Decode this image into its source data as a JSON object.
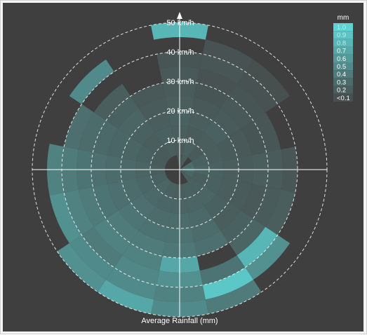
{
  "chart_data": {
    "type": "polar-heatmap",
    "title": "",
    "caption": "Average Rainfall (mm)",
    "radial_axis": {
      "unit": "km/h",
      "ticks": [
        10,
        20,
        30,
        40,
        50
      ],
      "tick_labels": [
        "10 km/h",
        "20 km/h",
        "30 km/h",
        "40 km/h",
        "50 km/h"
      ],
      "range": [
        0,
        50
      ]
    },
    "direction_sectors": 16,
    "speed_bin_width_kmh": 5,
    "legend": {
      "title": "mm",
      "position": "top-right",
      "entries": [
        "1.0",
        "0.9",
        "0.8",
        "0.7",
        "0.6",
        "0.5",
        "0.4",
        "0.3",
        "0.2",
        "<0.1"
      ],
      "levels": [
        1.0,
        0.9,
        0.8,
        0.7,
        0.6,
        0.5,
        0.4,
        0.3,
        0.2,
        0.1
      ]
    },
    "colors": {
      "background": "#3f3f3f",
      "grid": "#ffffff",
      "empty": "#3f3f3f",
      "low": "#474f4f",
      "high": "#5ed3d3"
    },
    "sector_start_deg_from_north_clockwise": -11.25,
    "cells": [
      [
        0.15,
        0.18,
        0.2,
        0.22,
        0.2,
        0.18,
        0.16,
        0.14,
        0.0,
        0.8
      ],
      [
        0.2,
        0.22,
        0.18,
        0.2,
        0.16,
        0.14,
        0.12,
        0.15,
        0.12,
        0.0
      ],
      [
        0.0,
        0.18,
        0.2,
        0.22,
        0.18,
        0.16,
        0.14,
        0.12,
        0.1,
        0.0
      ],
      [
        0.3,
        0.22,
        0.2,
        0.18,
        0.16,
        0.14,
        0.15,
        0.0,
        0.0,
        0.0
      ],
      [
        0.35,
        0.25,
        0.22,
        0.2,
        0.18,
        0.2,
        0.18,
        0.15,
        0.0,
        0.0
      ],
      [
        0.25,
        0.2,
        0.22,
        0.2,
        0.18,
        0.16,
        0.18,
        0.2,
        0.0,
        0.0
      ],
      [
        0.2,
        0.22,
        0.24,
        0.22,
        0.2,
        0.22,
        0.25,
        0.8,
        0.55,
        0.0
      ],
      [
        0.0,
        0.22,
        0.25,
        0.28,
        0.3,
        0.32,
        0.0,
        0.35,
        0.92,
        0.4
      ],
      [
        0.0,
        0.2,
        0.24,
        0.3,
        0.34,
        0.38,
        0.7,
        0.55,
        0.45,
        0.5
      ],
      [
        0.0,
        0.22,
        0.26,
        0.3,
        0.34,
        0.4,
        0.45,
        0.48,
        0.5,
        0.7
      ],
      [
        0.0,
        0.24,
        0.28,
        0.32,
        0.36,
        0.4,
        0.45,
        0.4,
        0.5,
        0.55
      ],
      [
        0.0,
        0.22,
        0.26,
        0.3,
        0.32,
        0.35,
        0.4,
        0.45,
        0.55,
        0.0
      ],
      [
        0.0,
        0.2,
        0.24,
        0.28,
        0.3,
        0.32,
        0.35,
        0.4,
        0.45,
        0.0
      ],
      [
        0.0,
        0.18,
        0.22,
        0.24,
        0.26,
        0.28,
        0.3,
        0.32,
        0.0,
        0.0
      ],
      [
        0.0,
        0.18,
        0.2,
        0.22,
        0.24,
        0.22,
        0.2,
        0.0,
        0.5,
        0.0
      ],
      [
        0.0,
        0.2,
        0.22,
        0.2,
        0.18,
        0.16,
        0.0,
        0.0,
        0.0,
        0.0
      ]
    ]
  }
}
